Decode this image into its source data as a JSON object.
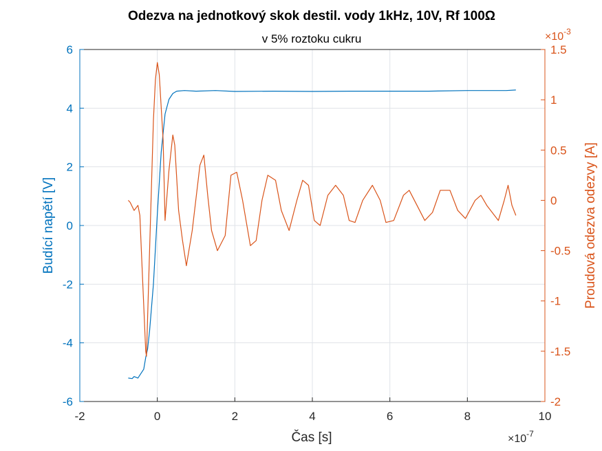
{
  "chart_data": {
    "type": "line",
    "title": "Odezva na jednotkový skok destil. vody 1kHz, 10V, Rf 100Ω",
    "subtitle": "v 5% roztoku cukru",
    "xlabel": "Čas [s]",
    "x_exponent": {
      "base": "×10",
      "power": "-7"
    },
    "xlim": [
      -2,
      10
    ],
    "xticks": [
      "-2",
      "0",
      "2",
      "4",
      "6",
      "8",
      "10"
    ],
    "grid": true,
    "y_left": {
      "label": "Budící napětí [V]",
      "lim": [
        -6,
        6
      ],
      "ticks": [
        "-6",
        "-4",
        "-2",
        "0",
        "2",
        "4",
        "6"
      ],
      "color": "#0072BD"
    },
    "y_right": {
      "label": "Proudová odezva odezvy [A]",
      "lim": [
        -2,
        1.5
      ],
      "ticks": [
        "-2",
        "-1.5",
        "-1",
        "-0.5",
        "0",
        "0.5",
        "1",
        "1.5"
      ],
      "exponent": {
        "base": "×10",
        "power": "-3"
      },
      "color": "#D95319"
    },
    "series": [
      {
        "axis": "left",
        "color": "#0072BD",
        "x": [
          -0.75,
          -0.65,
          -0.6,
          -0.5,
          -0.45,
          -0.35,
          -0.3,
          -0.25,
          -0.2,
          -0.1,
          0.0,
          0.1,
          0.2,
          0.3,
          0.4,
          0.5,
          0.7,
          1.0,
          1.5,
          2.0,
          3.0,
          4.0,
          5.0,
          6.0,
          7.0,
          8.0,
          9.0,
          9.25
        ],
        "y": [
          -5.2,
          -5.22,
          -5.15,
          -5.2,
          -5.1,
          -4.9,
          -4.5,
          -4.2,
          -3.6,
          -2.0,
          0.4,
          2.5,
          3.8,
          4.3,
          4.5,
          4.58,
          4.6,
          4.58,
          4.6,
          4.57,
          4.58,
          4.57,
          4.58,
          4.58,
          4.58,
          4.6,
          4.6,
          4.62
        ]
      },
      {
        "axis": "right",
        "color": "#D95319",
        "x": [
          -0.75,
          -0.7,
          -0.6,
          -0.5,
          -0.45,
          -0.4,
          -0.3,
          -0.28,
          -0.2,
          -0.1,
          -0.05,
          0.0,
          0.05,
          0.15,
          0.2,
          0.3,
          0.4,
          0.45,
          0.55,
          0.65,
          0.75,
          0.9,
          1.1,
          1.2,
          1.3,
          1.4,
          1.55,
          1.75,
          1.9,
          2.05,
          2.2,
          2.4,
          2.55,
          2.7,
          2.85,
          3.05,
          3.2,
          3.4,
          3.6,
          3.75,
          3.9,
          4.05,
          4.2,
          4.4,
          4.6,
          4.8,
          4.95,
          5.1,
          5.3,
          5.55,
          5.75,
          5.9,
          6.1,
          6.35,
          6.5,
          6.7,
          6.9,
          7.1,
          7.3,
          7.55,
          7.75,
          7.95,
          8.2,
          8.35,
          8.5,
          8.8,
          8.95,
          9.05,
          9.15,
          9.25
        ],
        "y": [
          0.0,
          -0.02,
          -0.1,
          -0.05,
          -0.15,
          -0.6,
          -1.5,
          -1.55,
          -0.5,
          0.8,
          1.2,
          1.37,
          1.25,
          0.6,
          -0.2,
          0.3,
          0.65,
          0.55,
          -0.1,
          -0.4,
          -0.65,
          -0.3,
          0.35,
          0.45,
          0.05,
          -0.3,
          -0.5,
          -0.35,
          0.25,
          0.28,
          0.0,
          -0.45,
          -0.4,
          0.0,
          0.25,
          0.2,
          -0.1,
          -0.3,
          0.0,
          0.2,
          0.15,
          -0.2,
          -0.25,
          0.05,
          0.15,
          0.05,
          -0.2,
          -0.22,
          0.0,
          0.15,
          0.0,
          -0.22,
          -0.2,
          0.05,
          0.1,
          -0.05,
          -0.2,
          -0.12,
          0.1,
          0.1,
          -0.1,
          -0.18,
          0.0,
          0.05,
          -0.05,
          -0.2,
          0.0,
          0.15,
          -0.05,
          -0.15
        ]
      }
    ]
  }
}
